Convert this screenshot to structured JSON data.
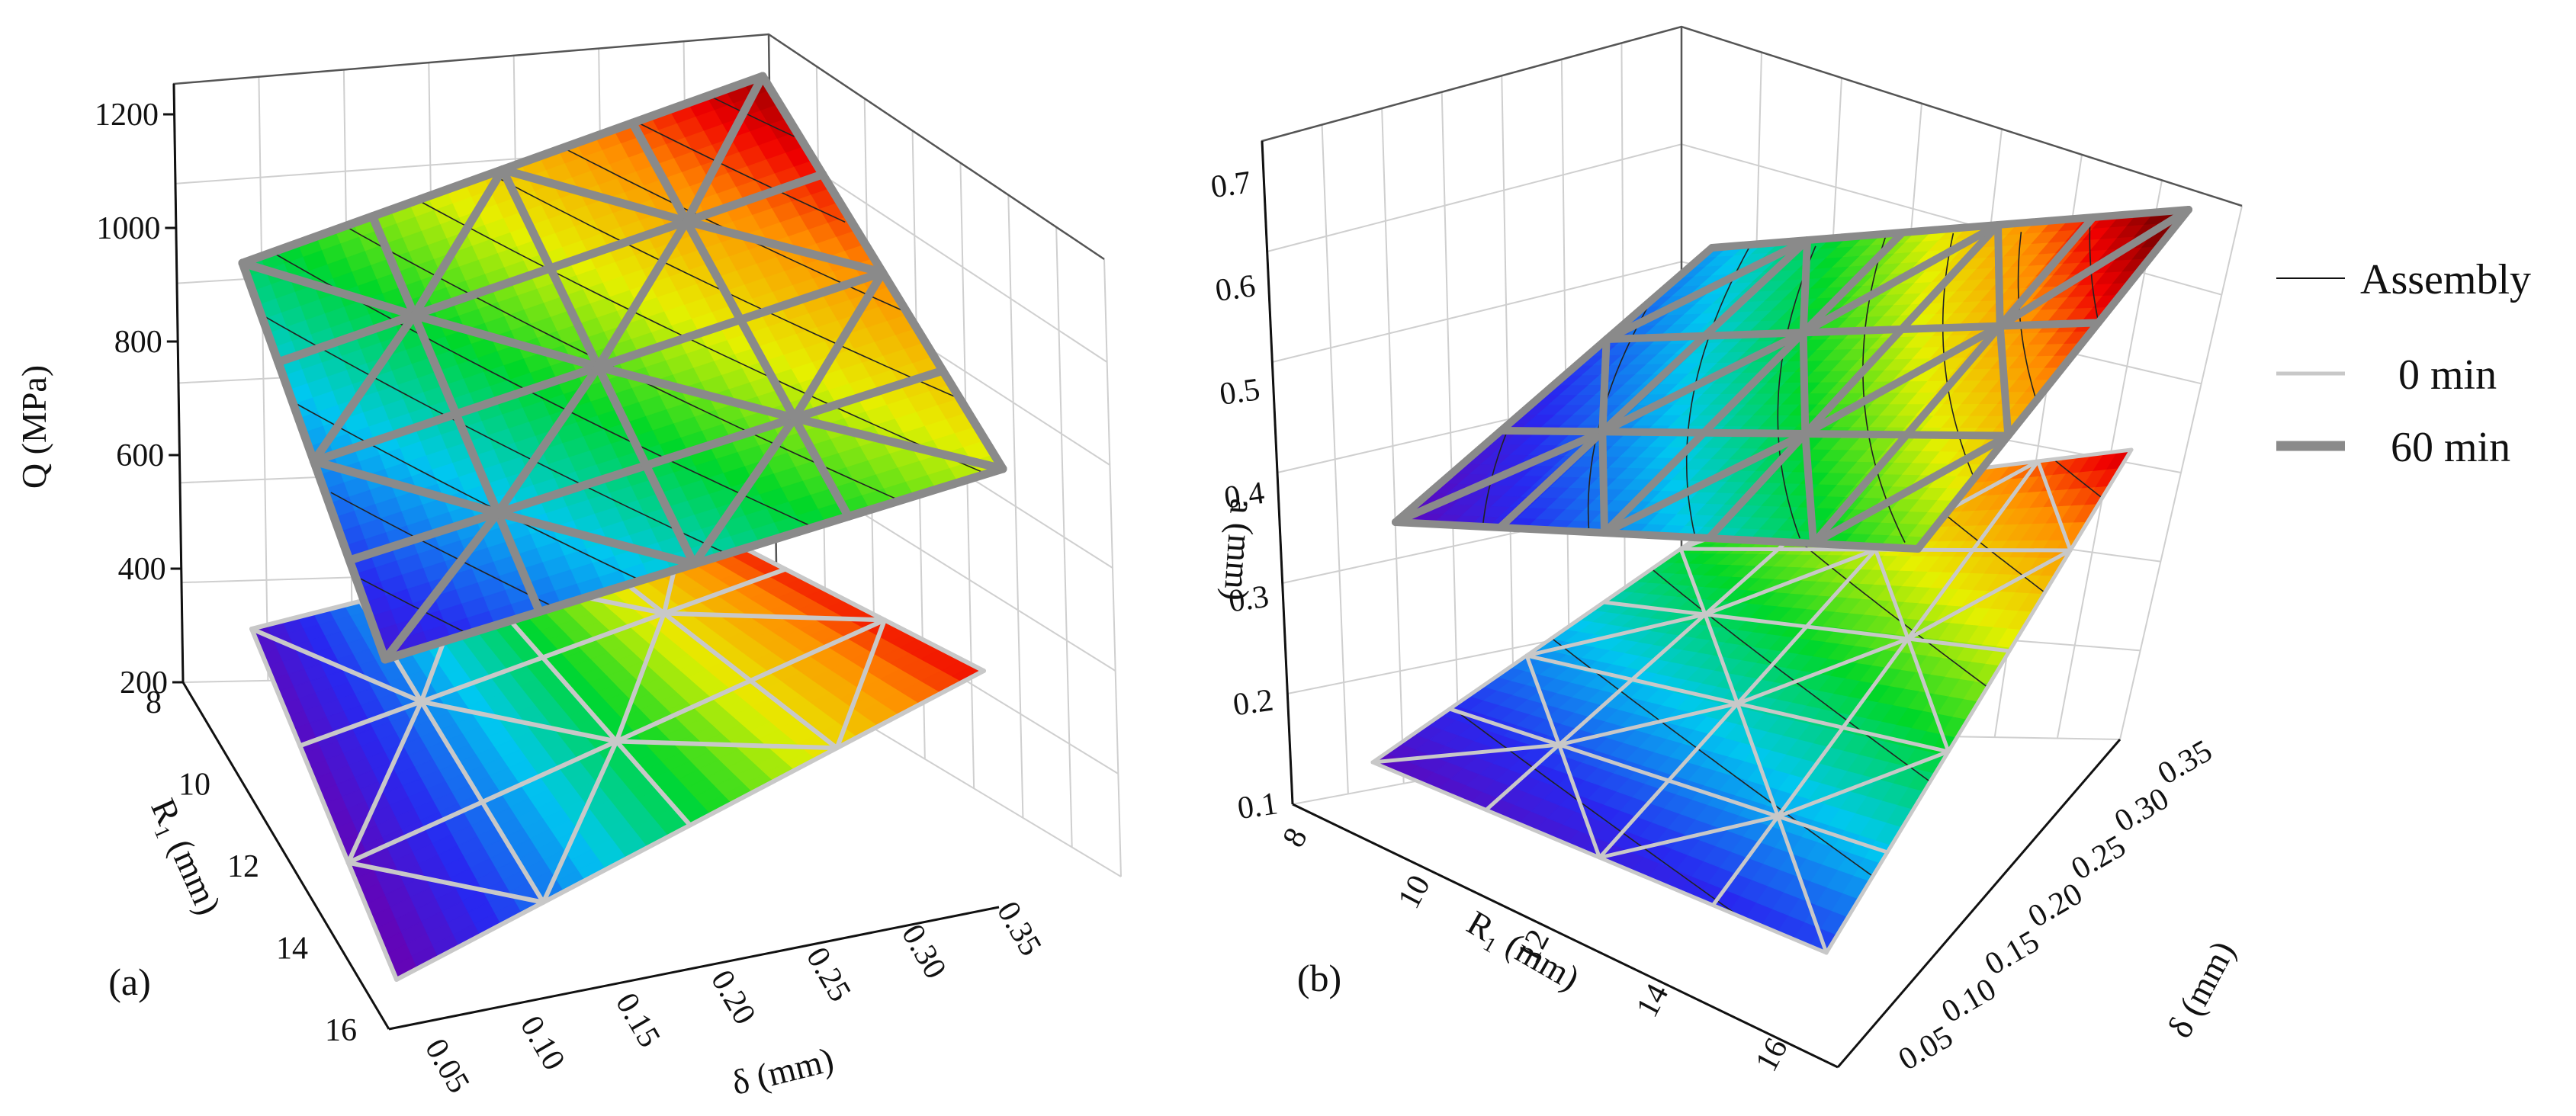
{
  "legend": {
    "items": [
      {
        "label": "Assembly",
        "color": "#111111",
        "width": 2
      },
      {
        "label": "0 min",
        "color": "#c8c8c8",
        "width": 5
      },
      {
        "label": "60 min",
        "color": "#8a8a8a",
        "width": 13
      }
    ]
  },
  "chart_data": [
    {
      "type": "surface3d",
      "panel_label": "(a)",
      "xlabel": "R₁ (mm)",
      "ylabel": "δ (mm)",
      "zlabel": "Q (MPa)",
      "x_ticks": [
        "8",
        "10",
        "12",
        "14",
        "16"
      ],
      "y_ticks": [
        "0.05",
        "0.10",
        "0.15",
        "0.20",
        "0.25",
        "0.30",
        "0.35"
      ],
      "z_ticks": [
        "200",
        "400",
        "600",
        "800",
        "1000",
        "1200"
      ],
      "xlim": [
        8,
        16
      ],
      "ylim": [
        0.05,
        0.35
      ],
      "zlim": [
        200,
        1250
      ],
      "series": [
        {
          "name": "0 min",
          "corners": {
            "R8_d0.05": 290,
            "R16_d0.05": 230,
            "R16_d0.35": 560,
            "R8_d0.35": 820
          }
        },
        {
          "name": "60 min",
          "corners": {
            "R8_d0.05": 970,
            "R16_d0.05": 250,
            "R16_d0.35": 700,
            "R8_d0.35": 1270
          }
        }
      ]
    },
    {
      "type": "surface3d",
      "panel_label": "(b)",
      "xlabel": "R₁ (mm)",
      "ylabel": "δ (mm)",
      "zlabel": "a (mm)",
      "x_ticks": [
        "8",
        "10",
        "12",
        "14",
        "16"
      ],
      "y_ticks": [
        "0.05",
        "0.10",
        "0.15",
        "0.20",
        "0.25",
        "0.30",
        "0.35"
      ],
      "z_ticks": [
        "0.1",
        "0.2",
        "0.3",
        "0.4",
        "0.5",
        "0.6",
        "0.7"
      ],
      "xlim": [
        8,
        16
      ],
      "ylim": [
        0.05,
        0.35
      ],
      "zlim": [
        0.1,
        0.72
      ],
      "series": [
        {
          "name": "0 min",
          "corners": {
            "R8_d0.05": 0.21,
            "R16_d0.05": 0.2,
            "R16_d0.35": 0.43,
            "R8_d0.35": 0.47
          }
        },
        {
          "name": "60 min",
          "corners": {
            "R8_d0.05": 0.45,
            "R16_d0.05": 0.44,
            "R16_d0.35": 0.7,
            "R8_d0.35": 0.71
          }
        }
      ]
    }
  ]
}
